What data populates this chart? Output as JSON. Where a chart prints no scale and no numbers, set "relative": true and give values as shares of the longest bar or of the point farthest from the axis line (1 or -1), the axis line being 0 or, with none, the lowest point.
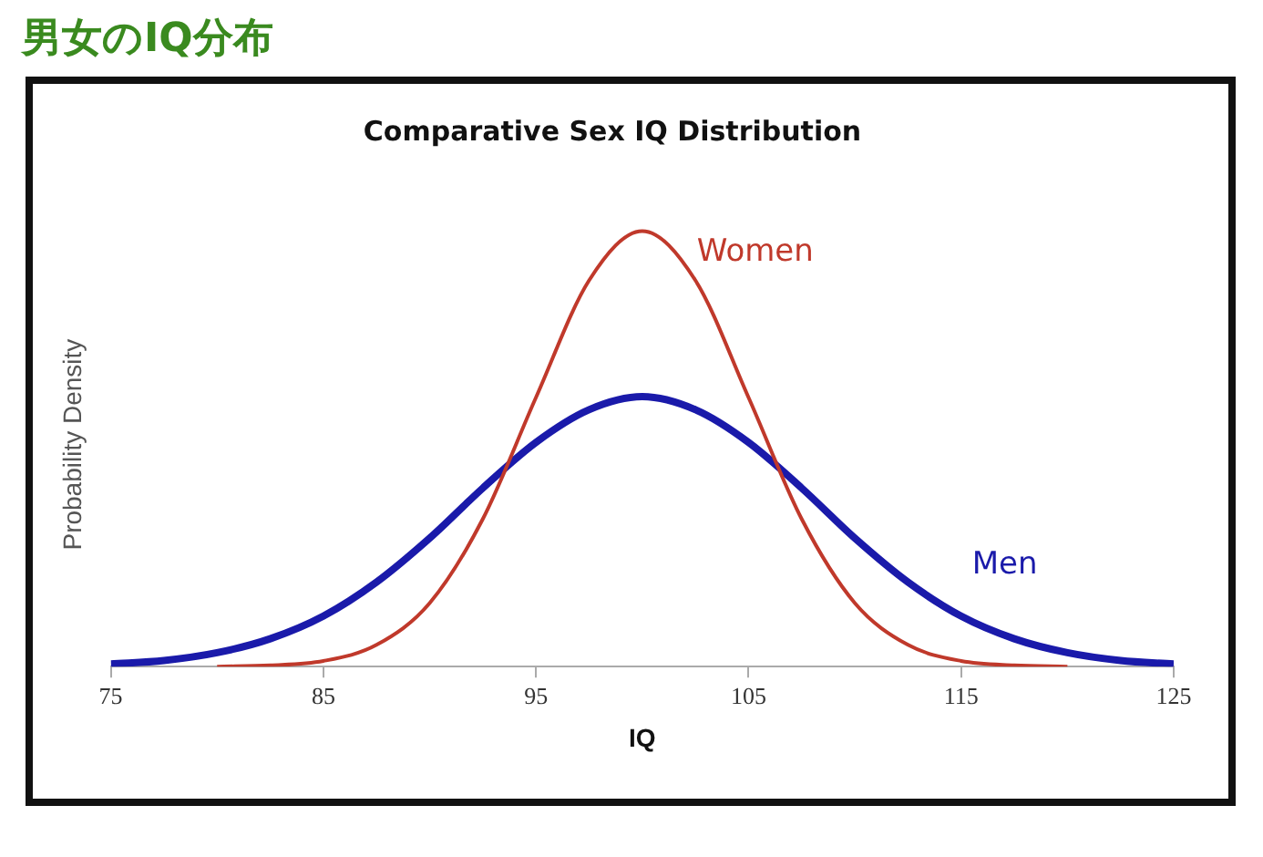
{
  "chart_data": {
    "type": "line",
    "title": "男女のIQ分布",
    "subtitle": "Comparative Sex IQ Distribution",
    "xlabel": "IQ",
    "ylabel": "Probability Density",
    "relative": true,
    "legend": false,
    "grid": false,
    "marker": "none",
    "line_style": "solid",
    "xlim": [
      75,
      125
    ],
    "xticks": [
      75,
      85,
      95,
      105,
      115,
      125
    ],
    "series": [
      {
        "name": "Women",
        "color": "#c0392b",
        "x": [
          80,
          82.5,
          85,
          87.5,
          90,
          92.5,
          95,
          97.5,
          100,
          102.5,
          105,
          107.5,
          110,
          112.5,
          115,
          117.5,
          120
        ],
        "values": [
          0,
          0.003,
          0.013,
          0.05,
          0.146,
          0.339,
          0.618,
          0.887,
          1,
          0.887,
          0.618,
          0.339,
          0.146,
          0.05,
          0.013,
          0.003,
          0
        ]
      },
      {
        "name": "Men",
        "color": "#1a1aaa",
        "x": [
          75,
          77.5,
          80,
          82.5,
          85,
          87.5,
          90,
          92.5,
          95,
          97.5,
          100,
          102.5,
          105,
          107.5,
          110,
          112.5,
          115,
          117.5,
          120,
          122.5,
          125
        ],
        "values": [
          0.006,
          0.014,
          0.032,
          0.064,
          0.116,
          0.194,
          0.295,
          0.41,
          0.515,
          0.59,
          0.62,
          0.59,
          0.515,
          0.41,
          0.295,
          0.194,
          0.116,
          0.064,
          0.032,
          0.014,
          0.006
        ]
      }
    ]
  }
}
